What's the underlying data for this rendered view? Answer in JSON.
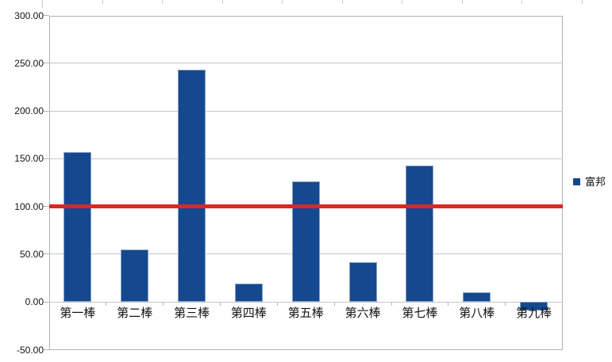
{
  "chart_data": {
    "type": "bar",
    "title": "",
    "categories": [
      "第一棒",
      "第二棒",
      "第三棒",
      "第四棒",
      "第五棒",
      "第六棒",
      "第七棒",
      "第八棒",
      "第九棒"
    ],
    "series": [
      {
        "name": "富邦",
        "color": "#14498f",
        "values": [
          157,
          55,
          243,
          19,
          126,
          42,
          143,
          10,
          -9
        ]
      }
    ],
    "reference_line": {
      "value": 100,
      "color": "#dc2726",
      "thickness_px": 5
    },
    "y_axis": {
      "min": -50,
      "max": 300,
      "tick_step": 50,
      "tick_labels": [
        "300.00",
        "250.00",
        "200.00",
        "150.00",
        "100.00",
        "50.00",
        "0.00",
        "-50.00"
      ]
    },
    "x_axis": {
      "crosses_at": 0
    },
    "legend": {
      "position": "right",
      "label": "富邦",
      "swatch_color": "#14498f"
    },
    "grid": true,
    "colors": {
      "gridline": "#c6c6c6",
      "plot_border": "#b3b3b3",
      "background": "#ffffff"
    }
  }
}
